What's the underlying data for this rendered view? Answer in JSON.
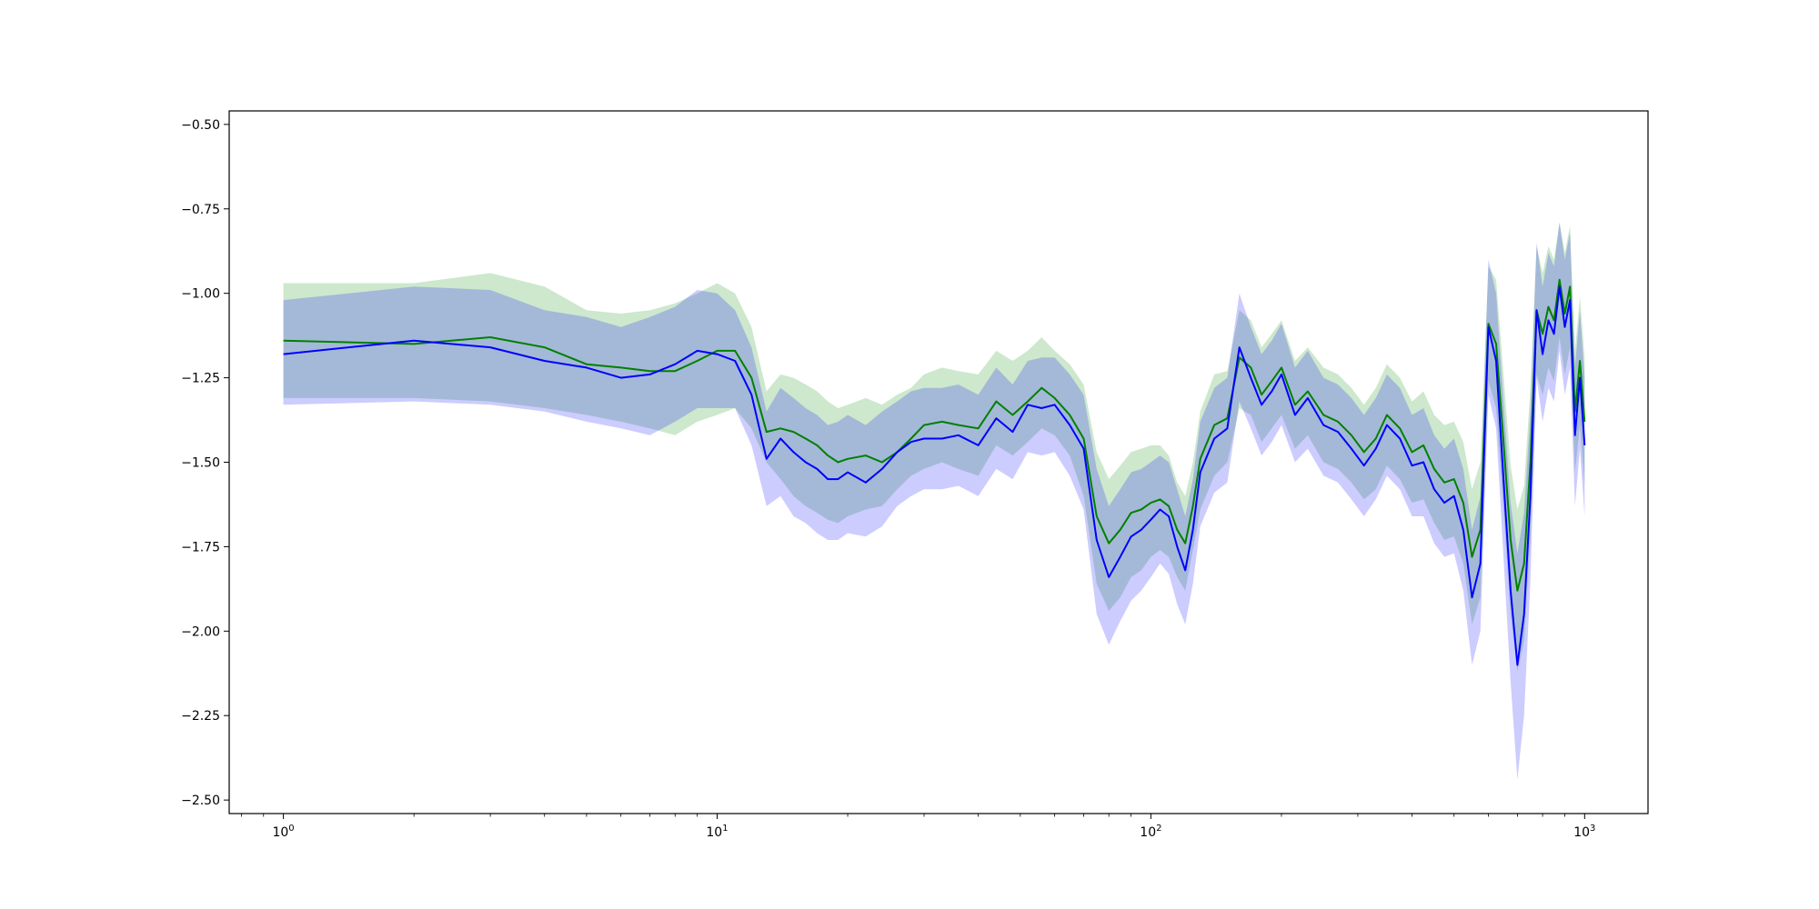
{
  "chart_data": {
    "type": "line",
    "title": "",
    "xlabel": "",
    "ylabel": "",
    "xscale": "log",
    "xlim": [
      0.75,
      1400
    ],
    "ylim": [
      -2.54,
      -0.46
    ],
    "grid": false,
    "legend": "none",
    "x_ticks": [
      {
        "value": 1,
        "base": "10",
        "exp": "0"
      },
      {
        "value": 10,
        "base": "10",
        "exp": "1"
      },
      {
        "value": 100,
        "base": "10",
        "exp": "2"
      },
      {
        "value": 1000,
        "base": "10",
        "exp": "3"
      }
    ],
    "y_ticks": [
      {
        "value": -0.5,
        "label": "−0.50"
      },
      {
        "value": -0.75,
        "label": "−0.75"
      },
      {
        "value": -1.0,
        "label": "−1.00"
      },
      {
        "value": -1.25,
        "label": "−1.25"
      },
      {
        "value": -1.5,
        "label": "−1.50"
      },
      {
        "value": -1.75,
        "label": "−1.75"
      },
      {
        "value": -2.0,
        "label": "−2.00"
      },
      {
        "value": -2.25,
        "label": "−2.25"
      },
      {
        "value": -2.5,
        "label": "−2.50"
      }
    ],
    "series": [
      {
        "color": "#008000",
        "band_color": "#2ca02c",
        "x": [
          1,
          2,
          3,
          4,
          5,
          6,
          7,
          8,
          9,
          10,
          11,
          12,
          13,
          14,
          15,
          16,
          17,
          18,
          19,
          20,
          22,
          24,
          26,
          28,
          30,
          33,
          36,
          40,
          44,
          48,
          52,
          56,
          60,
          65,
          70,
          75,
          80,
          85,
          90,
          95,
          100,
          105,
          110,
          115,
          120,
          125,
          130,
          140,
          150,
          160,
          170,
          180,
          190,
          200,
          215,
          230,
          250,
          270,
          290,
          310,
          330,
          350,
          375,
          400,
          425,
          450,
          475,
          500,
          525,
          550,
          575,
          600,
          625,
          650,
          675,
          700,
          725,
          750,
          775,
          800,
          825,
          850,
          875,
          900,
          925,
          950,
          975,
          1000
        ],
        "y": [
          -1.14,
          -1.15,
          -1.13,
          -1.16,
          -1.21,
          -1.22,
          -1.23,
          -1.23,
          -1.2,
          -1.17,
          -1.17,
          -1.25,
          -1.41,
          -1.4,
          -1.41,
          -1.43,
          -1.45,
          -1.48,
          -1.5,
          -1.49,
          -1.48,
          -1.5,
          -1.47,
          -1.43,
          -1.39,
          -1.38,
          -1.39,
          -1.4,
          -1.32,
          -1.36,
          -1.32,
          -1.28,
          -1.31,
          -1.36,
          -1.43,
          -1.66,
          -1.74,
          -1.7,
          -1.65,
          -1.64,
          -1.62,
          -1.61,
          -1.63,
          -1.7,
          -1.74,
          -1.63,
          -1.49,
          -1.39,
          -1.37,
          -1.19,
          -1.22,
          -1.3,
          -1.26,
          -1.22,
          -1.33,
          -1.29,
          -1.36,
          -1.38,
          -1.42,
          -1.47,
          -1.43,
          -1.36,
          -1.4,
          -1.47,
          -1.45,
          -1.52,
          -1.56,
          -1.55,
          -1.62,
          -1.78,
          -1.7,
          -1.09,
          -1.15,
          -1.44,
          -1.73,
          -1.88,
          -1.8,
          -1.5,
          -1.05,
          -1.12,
          -1.04,
          -1.08,
          -0.96,
          -1.06,
          -0.98,
          -1.35,
          -1.2,
          -1.38
        ],
        "lower": [
          -1.31,
          -1.31,
          -1.32,
          -1.34,
          -1.36,
          -1.38,
          -1.4,
          -1.42,
          -1.38,
          -1.36,
          -1.34,
          -1.4,
          -1.5,
          -1.55,
          -1.6,
          -1.63,
          -1.65,
          -1.67,
          -1.68,
          -1.66,
          -1.64,
          -1.63,
          -1.58,
          -1.54,
          -1.52,
          -1.5,
          -1.52,
          -1.54,
          -1.45,
          -1.48,
          -1.44,
          -1.4,
          -1.42,
          -1.48,
          -1.6,
          -1.86,
          -1.94,
          -1.9,
          -1.84,
          -1.82,
          -1.78,
          -1.76,
          -1.78,
          -1.84,
          -1.88,
          -1.76,
          -1.64,
          -1.54,
          -1.5,
          -1.34,
          -1.36,
          -1.44,
          -1.4,
          -1.36,
          -1.46,
          -1.42,
          -1.5,
          -1.52,
          -1.56,
          -1.61,
          -1.58,
          -1.51,
          -1.55,
          -1.62,
          -1.61,
          -1.68,
          -1.73,
          -1.72,
          -1.8,
          -1.98,
          -1.9,
          -1.26,
          -1.34,
          -1.64,
          -1.95,
          -2.12,
          -2.03,
          -1.72,
          -1.24,
          -1.3,
          -1.22,
          -1.26,
          -1.13,
          -1.24,
          -1.16,
          -1.53,
          -1.39,
          -1.57
        ],
        "upper": [
          -0.97,
          -0.97,
          -0.94,
          -0.98,
          -1.05,
          -1.06,
          -1.05,
          -1.03,
          -1.0,
          -0.97,
          -1.0,
          -1.1,
          -1.29,
          -1.24,
          -1.25,
          -1.27,
          -1.29,
          -1.32,
          -1.34,
          -1.33,
          -1.31,
          -1.33,
          -1.3,
          -1.28,
          -1.24,
          -1.22,
          -1.23,
          -1.24,
          -1.17,
          -1.2,
          -1.17,
          -1.13,
          -1.17,
          -1.21,
          -1.27,
          -1.47,
          -1.55,
          -1.51,
          -1.47,
          -1.46,
          -1.45,
          -1.45,
          -1.48,
          -1.56,
          -1.6,
          -1.5,
          -1.35,
          -1.24,
          -1.23,
          -1.05,
          -1.08,
          -1.16,
          -1.12,
          -1.08,
          -1.2,
          -1.16,
          -1.22,
          -1.24,
          -1.28,
          -1.33,
          -1.28,
          -1.21,
          -1.25,
          -1.32,
          -1.29,
          -1.36,
          -1.39,
          -1.38,
          -1.44,
          -1.58,
          -1.5,
          -0.92,
          -0.96,
          -1.24,
          -1.51,
          -1.64,
          -1.57,
          -1.28,
          -0.86,
          -0.94,
          -0.86,
          -0.9,
          -0.79,
          -0.88,
          -0.8,
          -1.17,
          -1.01,
          -1.19
        ]
      },
      {
        "color": "#0000ff",
        "band_color": "#0000ff",
        "x": [
          1,
          2,
          3,
          4,
          5,
          6,
          7,
          8,
          9,
          10,
          11,
          12,
          13,
          14,
          15,
          16,
          17,
          18,
          19,
          20,
          22,
          24,
          26,
          28,
          30,
          33,
          36,
          40,
          44,
          48,
          52,
          56,
          60,
          65,
          70,
          75,
          80,
          85,
          90,
          95,
          100,
          105,
          110,
          115,
          120,
          125,
          130,
          140,
          150,
          160,
          170,
          180,
          190,
          200,
          215,
          230,
          250,
          270,
          290,
          310,
          330,
          350,
          375,
          400,
          425,
          450,
          475,
          500,
          525,
          550,
          575,
          600,
          625,
          650,
          675,
          700,
          725,
          750,
          775,
          800,
          825,
          850,
          875,
          900,
          925,
          950,
          975,
          1000
        ],
        "y": [
          -1.18,
          -1.14,
          -1.16,
          -1.2,
          -1.22,
          -1.25,
          -1.24,
          -1.21,
          -1.17,
          -1.18,
          -1.2,
          -1.3,
          -1.49,
          -1.43,
          -1.47,
          -1.5,
          -1.52,
          -1.55,
          -1.55,
          -1.53,
          -1.56,
          -1.52,
          -1.47,
          -1.44,
          -1.43,
          -1.43,
          -1.42,
          -1.45,
          -1.37,
          -1.41,
          -1.33,
          -1.34,
          -1.33,
          -1.39,
          -1.46,
          -1.73,
          -1.84,
          -1.78,
          -1.72,
          -1.7,
          -1.67,
          -1.64,
          -1.66,
          -1.75,
          -1.82,
          -1.7,
          -1.53,
          -1.43,
          -1.4,
          -1.16,
          -1.25,
          -1.33,
          -1.29,
          -1.24,
          -1.36,
          -1.31,
          -1.39,
          -1.41,
          -1.46,
          -1.51,
          -1.46,
          -1.39,
          -1.43,
          -1.51,
          -1.5,
          -1.58,
          -1.62,
          -1.6,
          -1.7,
          -1.9,
          -1.8,
          -1.1,
          -1.2,
          -1.55,
          -1.88,
          -2.1,
          -1.95,
          -1.6,
          -1.05,
          -1.18,
          -1.08,
          -1.12,
          -0.98,
          -1.1,
          -1.02,
          -1.42,
          -1.25,
          -1.45
        ],
        "lower": [
          -1.33,
          -1.32,
          -1.33,
          -1.35,
          -1.38,
          -1.4,
          -1.42,
          -1.38,
          -1.34,
          -1.34,
          -1.34,
          -1.45,
          -1.63,
          -1.6,
          -1.66,
          -1.68,
          -1.71,
          -1.73,
          -1.73,
          -1.71,
          -1.72,
          -1.69,
          -1.63,
          -1.6,
          -1.58,
          -1.58,
          -1.57,
          -1.6,
          -1.52,
          -1.55,
          -1.47,
          -1.48,
          -1.47,
          -1.54,
          -1.64,
          -1.95,
          -2.04,
          -1.97,
          -1.91,
          -1.88,
          -1.84,
          -1.8,
          -1.83,
          -1.92,
          -1.98,
          -1.86,
          -1.69,
          -1.59,
          -1.56,
          -1.32,
          -1.4,
          -1.48,
          -1.44,
          -1.39,
          -1.5,
          -1.46,
          -1.54,
          -1.56,
          -1.61,
          -1.66,
          -1.61,
          -1.54,
          -1.58,
          -1.66,
          -1.66,
          -1.74,
          -1.78,
          -1.77,
          -1.88,
          -2.1,
          -2.0,
          -1.3,
          -1.4,
          -1.78,
          -2.15,
          -2.44,
          -2.25,
          -1.85,
          -1.25,
          -1.38,
          -1.28,
          -1.32,
          -1.17,
          -1.3,
          -1.22,
          -1.63,
          -1.46,
          -1.66
        ],
        "upper": [
          -1.02,
          -0.98,
          -0.99,
          -1.05,
          -1.07,
          -1.1,
          -1.07,
          -1.04,
          -0.99,
          -1.0,
          -1.05,
          -1.16,
          -1.35,
          -1.28,
          -1.31,
          -1.34,
          -1.36,
          -1.39,
          -1.38,
          -1.36,
          -1.39,
          -1.35,
          -1.32,
          -1.29,
          -1.28,
          -1.28,
          -1.27,
          -1.3,
          -1.22,
          -1.27,
          -1.2,
          -1.19,
          -1.19,
          -1.24,
          -1.3,
          -1.52,
          -1.63,
          -1.58,
          -1.53,
          -1.52,
          -1.5,
          -1.48,
          -1.5,
          -1.58,
          -1.66,
          -1.55,
          -1.38,
          -1.28,
          -1.25,
          -1.0,
          -1.1,
          -1.18,
          -1.14,
          -1.09,
          -1.22,
          -1.17,
          -1.25,
          -1.27,
          -1.31,
          -1.36,
          -1.31,
          -1.24,
          -1.28,
          -1.36,
          -1.34,
          -1.42,
          -1.46,
          -1.43,
          -1.52,
          -1.7,
          -1.6,
          -0.9,
          -1.0,
          -1.32,
          -1.62,
          -1.77,
          -1.65,
          -1.35,
          -0.85,
          -0.98,
          -0.88,
          -0.92,
          -0.79,
          -0.9,
          -0.82,
          -1.22,
          -1.05,
          -1.25
        ]
      }
    ]
  }
}
